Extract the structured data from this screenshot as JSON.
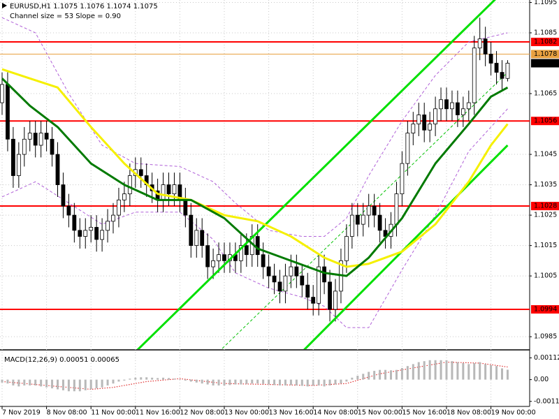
{
  "chart_data": [
    {
      "type": "candlestick",
      "title": "EURUSD,H1 1.1075 1.1076 1.1074 1.1075",
      "subtitle": "Channel size = 53 Slope = 0.90",
      "categories": [
        "7 Nov 2019",
        null,
        null,
        null,
        null,
        null,
        null,
        null,
        "8 Nov 08:00",
        null,
        null,
        null,
        null,
        null,
        null,
        null,
        "11 Nov 00:00",
        null,
        null,
        null,
        null,
        null,
        null,
        null,
        "11 Nov 16:00",
        null,
        null,
        null,
        null,
        null,
        null,
        null,
        "12 Nov 08:00",
        null,
        null,
        null,
        null,
        null,
        null,
        null,
        "13 Nov 00:00",
        null,
        null,
        null,
        null,
        null,
        null,
        null,
        "13 Nov 16:00",
        null,
        null,
        null,
        null,
        null,
        null,
        null,
        "14 Nov 08:00",
        null,
        null,
        null,
        null,
        null,
        null,
        null,
        "15 Nov 00:00",
        null,
        null,
        null,
        null,
        null,
        null,
        null,
        "15 Nov 16:00",
        null,
        null,
        null,
        null,
        null,
        null,
        null,
        "18 Nov 08:00",
        null,
        null,
        null,
        null,
        null,
        null,
        null,
        "19 Nov 00:00",
        null,
        null,
        null
      ],
      "open": [
        1.1062,
        1.1068,
        1.105,
        1.1038,
        1.1045,
        1.105,
        1.1052,
        1.1048,
        1.1052,
        1.105,
        1.1045,
        1.1035,
        1.1028,
        1.1025,
        1.102,
        1.1018,
        1.102,
        1.1021,
        1.1017,
        1.102,
        1.1023,
        1.1025,
        1.103,
        1.1032,
        1.1038,
        1.104,
        1.1038,
        1.1035,
        1.1033,
        1.103,
        1.1035,
        1.1032,
        1.1035,
        1.103,
        1.1025,
        1.1015,
        1.102,
        1.1015,
        1.1008,
        1.101,
        1.1012,
        1.101,
        1.1012,
        1.101,
        1.1015,
        1.1012,
        1.1018,
        1.1012,
        1.1008,
        1.1005,
        1.1003,
        1.1,
        1.1005,
        1.1008,
        1.1005,
        1.1002,
        1.0998,
        1.0996,
        1.1008,
        1.1003,
        1.0994,
        1.1,
        1.101,
        1.1018,
        1.1025,
        1.1022,
        1.1025,
        1.1028,
        1.1025,
        1.102,
        1.1018,
        1.1022,
        1.1032,
        1.1042,
        1.1052,
        1.1055,
        1.1058,
        1.1053,
        1.1055,
        1.106,
        1.1063,
        1.106,
        1.1062,
        1.1058,
        1.106,
        1.1062,
        1.108,
        1.1083,
        1.1078,
        1.1075,
        1.1072,
        1.107
      ],
      "high": [
        1.1072,
        1.1072,
        1.1054,
        1.1049,
        1.1054,
        1.1056,
        1.1056,
        1.1056,
        1.1056,
        1.1054,
        1.1049,
        1.1039,
        1.1032,
        1.1029,
        1.1024,
        1.1024,
        1.1025,
        1.1025,
        1.1024,
        1.1027,
        1.1029,
        1.1034,
        1.1036,
        1.1042,
        1.1044,
        1.1044,
        1.1042,
        1.1039,
        1.1037,
        1.1039,
        1.1039,
        1.1039,
        1.1039,
        1.1034,
        1.1029,
        1.1024,
        1.1024,
        1.1019,
        1.1014,
        1.1016,
        1.1016,
        1.1016,
        1.1016,
        1.1019,
        1.1019,
        1.1022,
        1.1022,
        1.1016,
        1.1012,
        1.1009,
        1.1007,
        1.1009,
        1.1012,
        1.1012,
        1.1009,
        1.1006,
        1.1002,
        1.1012,
        1.1012,
        1.1007,
        1.1004,
        1.1014,
        1.1022,
        1.1029,
        1.1029,
        1.1029,
        1.1032,
        1.1032,
        1.1029,
        1.1024,
        1.1026,
        1.1036,
        1.1046,
        1.1056,
        1.1059,
        1.1062,
        1.1062,
        1.1059,
        1.1064,
        1.1067,
        1.1067,
        1.1066,
        1.1066,
        1.1064,
        1.1066,
        1.1084,
        1.109,
        1.1087,
        1.1082,
        1.1079,
        1.1076,
        1.1076
      ],
      "low": [
        1.1058,
        1.1046,
        1.1034,
        1.1034,
        1.1041,
        1.1046,
        1.1044,
        1.1044,
        1.1046,
        1.1041,
        1.1031,
        1.1024,
        1.1021,
        1.1016,
        1.1014,
        1.1014,
        1.1016,
        1.1013,
        1.1013,
        1.1016,
        1.1019,
        1.1021,
        1.1026,
        1.1028,
        1.1034,
        1.1034,
        1.1031,
        1.1029,
        1.1026,
        1.1026,
        1.1028,
        1.1028,
        1.1026,
        1.1021,
        1.1011,
        1.1011,
        1.1011,
        1.1004,
        1.1004,
        1.1006,
        1.1006,
        1.1006,
        1.1006,
        1.1006,
        1.1008,
        1.1008,
        1.1008,
        1.1004,
        1.1001,
        1.0999,
        1.0996,
        1.0996,
        1.1001,
        1.1001,
        1.0998,
        1.0994,
        1.0992,
        1.0992,
        1.0999,
        1.099,
        1.099,
        1.0996,
        1.1006,
        1.1014,
        1.1018,
        1.1018,
        1.1021,
        1.1021,
        1.1016,
        1.1014,
        1.1014,
        1.1018,
        1.1028,
        1.1038,
        1.1048,
        1.1051,
        1.1049,
        1.1049,
        1.1051,
        1.1056,
        1.1056,
        1.1056,
        1.1054,
        1.1054,
        1.1056,
        1.1058,
        1.1076,
        1.1074,
        1.1071,
        1.1068,
        1.1066,
        1.1069
      ],
      "close": [
        1.1068,
        1.105,
        1.1038,
        1.1045,
        1.105,
        1.1052,
        1.1048,
        1.1052,
        1.105,
        1.1045,
        1.1035,
        1.1028,
        1.1025,
        1.102,
        1.1018,
        1.102,
        1.1021,
        1.1017,
        1.102,
        1.1023,
        1.1025,
        1.103,
        1.1032,
        1.1038,
        1.104,
        1.1038,
        1.1035,
        1.1033,
        1.103,
        1.1035,
        1.1032,
        1.1035,
        1.103,
        1.1025,
        1.1015,
        1.102,
        1.1015,
        1.1008,
        1.101,
        1.1012,
        1.101,
        1.1012,
        1.101,
        1.1015,
        1.1012,
        1.1018,
        1.1012,
        1.1008,
        1.1005,
        1.1003,
        1.1,
        1.1005,
        1.1008,
        1.1005,
        1.1002,
        1.0998,
        1.0996,
        1.1008,
        1.1003,
        1.0994,
        1.1,
        1.101,
        1.1018,
        1.1025,
        1.1022,
        1.1025,
        1.1028,
        1.1025,
        1.102,
        1.1018,
        1.1022,
        1.1032,
        1.1042,
        1.1052,
        1.1055,
        1.1058,
        1.1053,
        1.1055,
        1.106,
        1.1063,
        1.106,
        1.1062,
        1.1058,
        1.106,
        1.1062,
        1.108,
        1.1083,
        1.1078,
        1.1075,
        1.1072,
        1.107,
        1.1075
      ],
      "up_color": "#ffffff",
      "down_color": "#000000",
      "ylim": [
        1.09809,
        1.10958
      ],
      "yticks": [
        1.0985,
        1.1005,
        1.1015,
        1.1025,
        1.1035,
        1.1045,
        1.1065,
        1.1085,
        1.1095
      ],
      "grid": true,
      "levels": [
        {
          "value": 1.1082,
          "color": "#ff0000",
          "style": "solid"
        },
        {
          "value": 1.1078,
          "color": "#e8a040",
          "style": "thin"
        },
        {
          "value": 1.1056,
          "color": "#ff0000",
          "style": "solid"
        },
        {
          "value": 1.1028,
          "color": "#ff0000",
          "style": "solid"
        },
        {
          "value": 1.0994,
          "color": "#ff0000",
          "style": "solid"
        }
      ],
      "last_price": 1.1075,
      "lines": [
        {
          "color": "#b060d8",
          "style": "dashed",
          "x": [
            0,
            6,
            12,
            18,
            24,
            32,
            38,
            42,
            48,
            54,
            58,
            62,
            66,
            72,
            78,
            84,
            91
          ],
          "values": [
            1.109,
            1.1085,
            1.1065,
            1.1048,
            1.1042,
            1.1041,
            1.1036,
            1.1029,
            1.102,
            1.1018,
            1.1018,
            1.1024,
            1.1038,
            1.1056,
            1.1071,
            1.1082,
            1.1085
          ]
        },
        {
          "color": "#b060d8",
          "style": "dashed",
          "x": [
            0,
            6,
            12,
            18,
            24,
            32,
            38,
            42,
            48,
            54,
            58,
            62,
            66,
            72,
            78,
            84,
            91
          ],
          "values": [
            1.1031,
            1.1036,
            1.1029,
            1.1022,
            1.1026,
            1.1026,
            1.1017,
            1.1006,
            1.1001,
            1.0998,
            1.0995,
            1.0988,
            1.0988,
            1.1007,
            1.1025,
            1.1046,
            1.106
          ]
        },
        {
          "color": "#00e000",
          "style": "thick",
          "x": [
            24,
            91
          ],
          "values": [
            1.098,
            1.11
          ]
        },
        {
          "color": "#00e000",
          "style": "thick",
          "x": [
            54,
            91
          ],
          "values": [
            1.098,
            1.1048
          ]
        },
        {
          "color": "#00c000",
          "style": "dashed",
          "x": [
            39,
            91
          ],
          "values": [
            1.098,
            1.1072
          ]
        },
        {
          "color": "#f5f000",
          "style": "thick",
          "x": [
            0,
            5,
            10,
            16,
            22,
            28,
            34,
            40,
            46,
            52,
            58,
            62,
            66,
            72,
            78,
            84,
            88,
            91
          ],
          "values": [
            1.1073,
            1.107,
            1.1067,
            1.1054,
            1.1042,
            1.1032,
            1.103,
            1.1025,
            1.1023,
            1.1018,
            1.1011,
            1.1008,
            1.1009,
            1.1013,
            1.1022,
            1.1036,
            1.1048,
            1.1055
          ]
        },
        {
          "color": "#007a00",
          "style": "thick",
          "x": [
            0,
            5,
            10,
            16,
            22,
            28,
            34,
            40,
            46,
            52,
            58,
            62,
            66,
            72,
            78,
            84,
            88,
            91
          ],
          "values": [
            1.107,
            1.1061,
            1.1054,
            1.1042,
            1.1035,
            1.103,
            1.103,
            1.1024,
            1.1014,
            1.101,
            1.1006,
            1.1005,
            1.1011,
            1.1024,
            1.1042,
            1.1055,
            1.1064,
            1.1067
          ]
        }
      ]
    },
    {
      "type": "bar",
      "title": "MACD(12,26,9) 0.00051 0.00065",
      "color": "#b8b8b8",
      "values": [
        -0.00015,
        -0.0002,
        -0.0003,
        -0.00035,
        -0.0003,
        -0.0003,
        -0.0003,
        -0.00035,
        -0.0004,
        -0.00045,
        -0.0005,
        -0.00055,
        -0.0006,
        -0.0006,
        -0.0006,
        -0.00055,
        -0.0005,
        -0.00045,
        -0.0004,
        -0.0003,
        -0.0002,
        -0.0001,
        -5e-05,
        5e-05,
        0.0001,
        0.00012,
        0.00012,
        0.0001,
        8e-05,
        0.0001,
        8e-05,
        5e-05,
        2e-05,
        -5e-05,
        -0.0001,
        -0.00015,
        -0.0002,
        -0.00025,
        -0.0003,
        -0.0003,
        -0.0003,
        -0.00028,
        -0.00025,
        -0.00025,
        -0.00022,
        -0.0002,
        -0.0002,
        -0.00022,
        -0.00025,
        -0.00028,
        -0.0003,
        -0.0003,
        -0.00028,
        -0.0003,
        -0.00032,
        -0.00035,
        -0.0003,
        -0.0003,
        -0.00035,
        -0.0003,
        -0.00025,
        -0.0002,
        -0.0001,
        0.0001,
        0.0002,
        0.0003,
        0.0004,
        0.00045,
        0.0005,
        0.0005,
        0.00048,
        0.0005,
        0.0006,
        0.0007,
        0.0008,
        0.0009,
        0.00095,
        0.001,
        0.001,
        0.001,
        0.001,
        0.00095,
        0.0009,
        0.00085,
        0.0008,
        0.00085,
        0.0009,
        0.0008,
        0.00075,
        0.0007,
        0.00058,
        0.00051
      ],
      "ylim": [
        -0.00138,
        0.00146
      ],
      "yticks": [
        -0.00112,
        {
          "value": 0,
          "label": "0.00"
        },
        0.00112
      ],
      "lines": [
        {
          "color": "#e03030",
          "style": "dotted",
          "x": [
            0,
            8,
            16,
            20,
            26,
            32,
            40,
            48,
            56,
            62,
            68,
            74,
            80,
            86,
            91
          ],
          "values": [
            -0.0001,
            -0.0003,
            -0.0005,
            -0.0004,
            -0.0001,
            5e-05,
            -0.0002,
            -0.00025,
            -0.0003,
            -0.0002,
            0.0003,
            0.0006,
            0.0009,
            0.00085,
            0.00065
          ]
        }
      ]
    }
  ]
}
